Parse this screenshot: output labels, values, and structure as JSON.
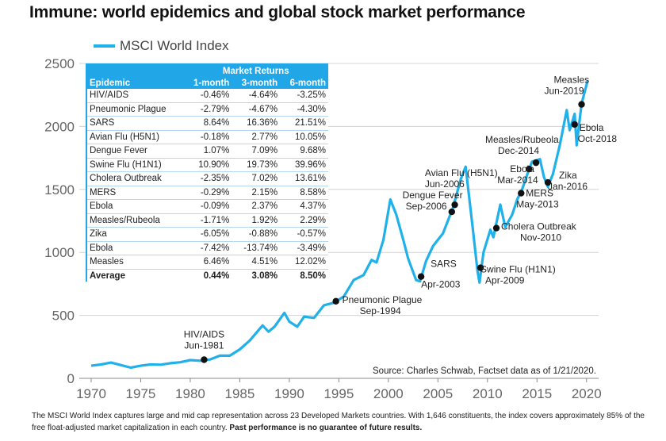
{
  "title": "Immune: world epidemics and global stock market performance",
  "legend": {
    "label": "MSCI World Index",
    "color": "#21b1ea"
  },
  "source": "Source: Charles Schwab, Factset data as of 1/21/2020.",
  "footnote": {
    "text": "The MSCI World Index captures large and mid cap representation across 23 Developed Markets countries. With 1,646 constituents, the index covers approximately 85% of the free float-adjusted market capitalization in each country.",
    "bold": "Past performance is no guarantee of future results."
  },
  "table": {
    "group_header": "Market Returns",
    "columns": [
      "Epidemic",
      "1-month",
      "3-month",
      "6-month"
    ],
    "rows": [
      [
        "HIV/AIDS",
        "-0.46%",
        "-4.64%",
        "-3.25%"
      ],
      [
        "Pneumonic Plague",
        "-2.79%",
        "-4.67%",
        "-4.30%"
      ],
      [
        "SARS",
        "8.64%",
        "16.36%",
        "21.51%"
      ],
      [
        "Avian Flu (H5N1)",
        "-0.18%",
        "2.77%",
        "10.05%"
      ],
      [
        "Dengue Fever",
        "1.07%",
        "7.09%",
        "9.68%"
      ],
      [
        "Swine Flu (H1N1)",
        "10.90%",
        "19.73%",
        "39.96%"
      ],
      [
        "Cholera Outbreak",
        "-2.35%",
        "7.02%",
        "13.61%"
      ],
      [
        "MERS",
        "-0.29%",
        "2.15%",
        "8.58%"
      ],
      [
        "Ebola",
        "-0.09%",
        "2.37%",
        "4.37%"
      ],
      [
        "Measles/Rubeola",
        "-1.71%",
        "1.92%",
        "2.29%"
      ],
      [
        "Zika",
        "-6.05%",
        "-0.88%",
        "-0.57%"
      ],
      [
        "Ebola",
        "-7.42%",
        "-13.74%",
        "-3.49%"
      ],
      [
        "Measles",
        "6.46%",
        "4.51%",
        "12.02%"
      ]
    ],
    "average": [
      "Average",
      "0.44%",
      "3.08%",
      "8.50%"
    ]
  },
  "chart_data": {
    "type": "line",
    "xlim": [
      1970,
      2020.1
    ],
    "ylim": [
      0,
      2500
    ],
    "x_ticks": [
      1970,
      1975,
      1980,
      1985,
      1990,
      1995,
      2000,
      2005,
      2010,
      2015,
      2020
    ],
    "y_ticks": [
      0,
      500,
      1000,
      1500,
      2000,
      2500
    ],
    "grid": true,
    "series": [
      {
        "name": "MSCI World Index",
        "color": "#21b1ea",
        "x": [
          1970.0,
          1971.0,
          1972.0,
          1973.0,
          1974.0,
          1975.0,
          1976.0,
          1977.0,
          1978.0,
          1979.0,
          1980.0,
          1981.0,
          1982.0,
          1983.0,
          1984.0,
          1985.0,
          1986.0,
          1987.3,
          1987.9,
          1988.5,
          1989.5,
          1990.0,
          1990.8,
          1991.5,
          1992.5,
          1993.5,
          1994.5,
          1995.5,
          1996.5,
          1997.5,
          1998.3,
          1998.8,
          1999.5,
          2000.2,
          2000.8,
          2001.5,
          2002.0,
          2002.8,
          2003.2,
          2003.8,
          2004.5,
          2005.5,
          2006.5,
          2007.3,
          2007.8,
          2008.5,
          2009.0,
          2009.2,
          2009.6,
          2010.3,
          2010.6,
          2011.3,
          2011.8,
          2012.5,
          2013.0,
          2013.5,
          2014.2,
          2014.5,
          2015.3,
          2015.7,
          2016.1,
          2016.6,
          2017.3,
          2018.0,
          2018.3,
          2018.8,
          2019.0,
          2019.5,
          2020.1
        ],
        "y": [
          100,
          110,
          125,
          105,
          85,
          100,
          110,
          108,
          120,
          128,
          145,
          140,
          150,
          180,
          180,
          230,
          300,
          420,
          370,
          410,
          520,
          450,
          410,
          490,
          480,
          580,
          600,
          650,
          780,
          820,
          940,
          920,
          1100,
          1420,
          1300,
          1100,
          950,
          780,
          770,
          930,
          1050,
          1150,
          1350,
          1580,
          1680,
          1200,
          850,
          760,
          1000,
          1180,
          1120,
          1380,
          1200,
          1300,
          1420,
          1500,
          1660,
          1720,
          1740,
          1600,
          1520,
          1620,
          1850,
          2130,
          1970,
          2100,
          1850,
          2180,
          2360
        ]
      }
    ],
    "events": [
      {
        "label": "HIV/AIDS",
        "date": "Jun-1981",
        "x": 1981.4,
        "y": 148
      },
      {
        "label": "Pneumonic Plague",
        "date": "Sep-1994",
        "x": 1994.7,
        "y": 612
      },
      {
        "label": "SARS",
        "date": "Apr-2003",
        "x": 2003.3,
        "y": 808
      },
      {
        "label": "Avian Flu (H5N1)",
        "date": "Jun-2006",
        "x": 2006.4,
        "y": 1322
      },
      {
        "label": "Dengue Fever",
        "date": "Sep-2006",
        "x": 2006.7,
        "y": 1378
      },
      {
        "label": "Swine Flu (H1N1)",
        "date": "Apr-2009",
        "x": 2009.3,
        "y": 878
      },
      {
        "label": "Cholera Outbreak",
        "date": "Nov-2010",
        "x": 2010.9,
        "y": 1193
      },
      {
        "label": "MERS",
        "date": "May-2013",
        "x": 2013.4,
        "y": 1470
      },
      {
        "label": "Ebola",
        "date": "Mar-2014",
        "x": 2014.2,
        "y": 1662
      },
      {
        "label": "Measles/Rubeola",
        "date": "Dec-2014",
        "x": 2014.9,
        "y": 1712
      },
      {
        "label": "Zika",
        "date": "Jan-2016",
        "x": 2016.1,
        "y": 1555
      },
      {
        "label": "Ebola",
        "date": "Oct-2018",
        "x": 2018.8,
        "y": 2016
      },
      {
        "label": "Measles",
        "date": "Jun-2019",
        "x": 2019.5,
        "y": 2175
      }
    ]
  }
}
